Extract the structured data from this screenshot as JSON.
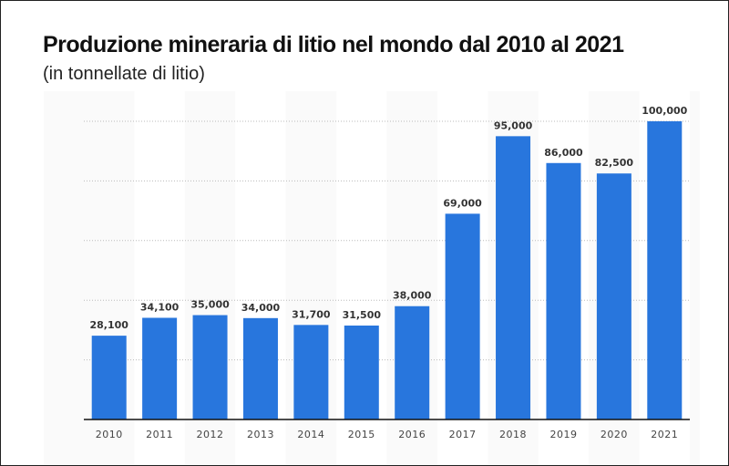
{
  "chart_data": {
    "type": "bar",
    "title": "Produzione mineraria di litio nel mondo dal 2010 al 2021",
    "subtitle": "(in tonnellate di litio)",
    "categories": [
      "2010",
      "2011",
      "2012",
      "2013",
      "2014",
      "2015",
      "2016",
      "2017",
      "2018",
      "2019",
      "2020",
      "2021"
    ],
    "values": [
      28100,
      34100,
      35000,
      34000,
      31700,
      31500,
      38000,
      69000,
      95000,
      86000,
      82500,
      100000
    ],
    "value_labels": [
      "28,100",
      "34,100",
      "35,000",
      "34,000",
      "31,700",
      "31,500",
      "38,000",
      "69,000",
      "95,000",
      "86,000",
      "82,500",
      "100,000"
    ],
    "ylim": [
      0,
      100000
    ],
    "grid": true,
    "bar_color": "#2876dd"
  }
}
